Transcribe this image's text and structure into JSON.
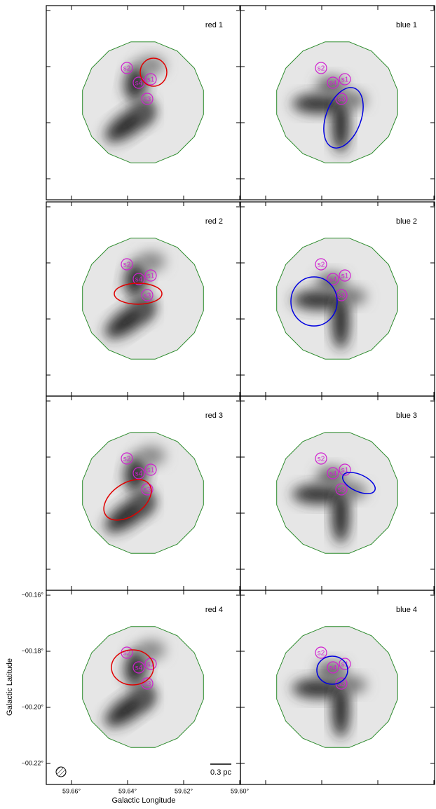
{
  "panels": [
    {
      "label": "red 1",
      "color": "#e00000"
    },
    {
      "label": "blue 1",
      "color": "#0000e0"
    },
    {
      "label": "red 2",
      "color": "#e00000"
    },
    {
      "label": "blue 2",
      "color": "#0000e0"
    },
    {
      "label": "red 3",
      "color": "#e00000"
    },
    {
      "label": "blue 3",
      "color": "#0000e0"
    },
    {
      "label": "red 4",
      "color": "#e00000"
    },
    {
      "label": "blue 4",
      "color": "#0000e0"
    }
  ],
  "sources": [
    "s1",
    "s2",
    "s3",
    "s4"
  ],
  "y_ticks": [
    "−00.16°",
    "−00.18°",
    "−00.20°",
    "−00.22°"
  ],
  "x_ticks": [
    "59.66°",
    "59.64°",
    "59.62°",
    "59.60°"
  ],
  "y_axis_title": "Galactic Latitude",
  "x_axis_title": "Galactic Longitude",
  "scale_bar": "0.3 pc"
}
